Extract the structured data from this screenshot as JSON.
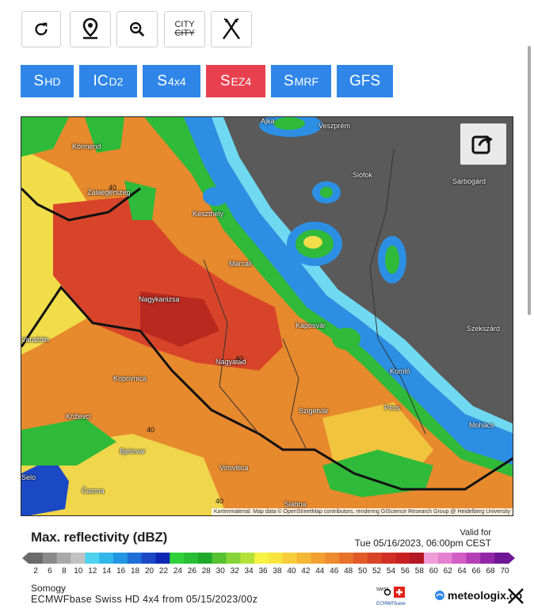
{
  "toolbar": {
    "refresh_icon": "refresh-icon",
    "location_icon": "location-pin-icon",
    "zoom_out_icon": "zoom-out-icon",
    "city_label": "CITY",
    "city_label_strike": "CITY",
    "roads_icon": "roads-icon"
  },
  "models": [
    {
      "main": "S",
      "sub": "HD",
      "color": "#2f86e8"
    },
    {
      "main": "IC",
      "sub": "D2",
      "color": "#2f86e8"
    },
    {
      "main": "S",
      "sub": "4x4",
      "color": "#2f86e8"
    },
    {
      "main": "S",
      "sub": "EZ4",
      "color": "#e8404f"
    },
    {
      "main": "S",
      "sub": "MRF",
      "color": "#2f86e8"
    },
    {
      "main": "GFS",
      "sub": "",
      "color": "#2f86e8"
    }
  ],
  "map": {
    "credit": "Kartenmaterial: Map data © OpenStreetMap contributors, rendering GIScience Research Group @ Heidelberg University",
    "cities": [
      "Ajka",
      "Veszprém",
      "Körmend",
      "Siófok",
      "Sárbogárd",
      "Zalaegerszeg",
      "Keszthely",
      "Marcali",
      "Nagykanizsa",
      "Kaposvár",
      "Szekszárd",
      "Varaždin",
      "Nagyatád",
      "Kaposvár",
      "Koprivnica",
      "Komló",
      "Pécs",
      "Szigetvár",
      "Križevci",
      "Mohács",
      "Bjelovar",
      "Virovitica",
      "Selo",
      "Čazma",
      "Slatina"
    ],
    "contour_labels": [
      "40",
      "40",
      "40",
      "40"
    ]
  },
  "legend": {
    "title": "Max. reflectivity (dBZ)",
    "valid_for": "Valid for",
    "valid_time": "Tue 05/16/2023, 06:00pm CEST",
    "ticks": [
      "2",
      "6",
      "8",
      "10",
      "12",
      "14",
      "16",
      "18",
      "20",
      "22",
      "24",
      "26",
      "28",
      "30",
      "32",
      "34",
      "36",
      "38",
      "40",
      "42",
      "44",
      "46",
      "48",
      "50",
      "52",
      "54",
      "56",
      "58",
      "60",
      "62",
      "64",
      "66",
      "68",
      "70"
    ],
    "colors": [
      "#6b6b6b",
      "#8a8a8a",
      "#a9a9a9",
      "#c2c2c2",
      "#4fd2f0",
      "#31b7ea",
      "#2397e3",
      "#1f6fd8",
      "#1b49c6",
      "#0c28b2",
      "#2fd23b",
      "#27be33",
      "#1faa2c",
      "#56c232",
      "#86d437",
      "#b3e23a",
      "#f6f342",
      "#f8e43e",
      "#f7cd39",
      "#f5b736",
      "#f3a032",
      "#ee8a2f",
      "#e8712c",
      "#e15a28",
      "#d94326",
      "#d12f24",
      "#c81f22",
      "#b41822",
      "#ef9dd7",
      "#e57fd0",
      "#d25ec5",
      "#b53fb6",
      "#9226a6",
      "#701696"
    ]
  },
  "footer": {
    "region": "Somogy",
    "model_run": "ECMWFbase Swiss HD 4x4 from 05/15/2023/00z",
    "brand": "meteologix.co",
    "badge": "SWISS HD",
    "ecmwf": "ECMWFbase"
  }
}
